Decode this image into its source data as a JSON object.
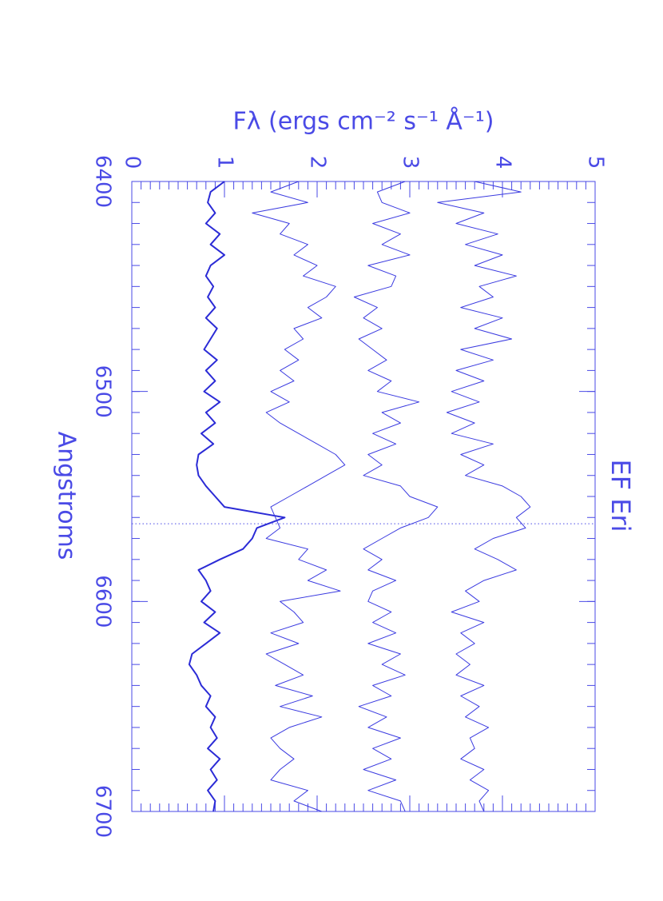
{
  "chart_data": {
    "type": "line",
    "title": "EF Eri",
    "xlabel": "Angstroms",
    "ylabel": "Fλ (ergs cm⁻² s⁻¹ Å⁻¹)",
    "x": [
      6400,
      6405,
      6410,
      6415,
      6420,
      6425,
      6430,
      6435,
      6440,
      6445,
      6450,
      6455,
      6460,
      6465,
      6470,
      6475,
      6480,
      6485,
      6490,
      6495,
      6500,
      6505,
      6510,
      6515,
      6520,
      6525,
      6530,
      6535,
      6540,
      6545,
      6550,
      6555,
      6560,
      6565,
      6570,
      6575,
      6580,
      6585,
      6590,
      6595,
      6600,
      6605,
      6610,
      6615,
      6620,
      6625,
      6630,
      6635,
      6640,
      6645,
      6650,
      6655,
      6660,
      6665,
      6670,
      6675,
      6680,
      6685,
      6690,
      6695,
      6700
    ],
    "series": [
      {
        "color": "#2b2bd6",
        "width": 2,
        "values": [
          1.0,
          0.85,
          0.82,
          0.9,
          0.8,
          0.95,
          0.85,
          1.0,
          0.85,
          0.8,
          0.88,
          0.82,
          0.9,
          0.8,
          0.92,
          0.85,
          0.78,
          0.92,
          0.8,
          0.9,
          0.78,
          0.95,
          0.8,
          0.9,
          0.75,
          0.88,
          0.72,
          0.7,
          0.72,
          0.8,
          0.9,
          1.0,
          1.65,
          1.35,
          1.3,
          1.2,
          0.95,
          0.72,
          0.8,
          0.85,
          0.75,
          0.9,
          0.78,
          0.95,
          0.8,
          0.65,
          0.62,
          0.7,
          0.75,
          0.85,
          0.8,
          0.9,
          0.85,
          0.92,
          0.82,
          0.95,
          0.85,
          0.92,
          0.82,
          0.9,
          0.88
        ]
      },
      {
        "color": "#3a3ae0",
        "width": 1,
        "values": [
          1.8,
          1.5,
          1.9,
          1.3,
          1.7,
          1.6,
          1.9,
          1.75,
          2.0,
          1.85,
          2.2,
          2.1,
          1.9,
          2.05,
          1.75,
          1.85,
          1.65,
          1.8,
          1.6,
          1.75,
          1.5,
          1.7,
          1.45,
          1.6,
          1.8,
          2.0,
          2.2,
          2.3,
          2.1,
          1.9,
          1.7,
          1.5,
          1.55,
          1.6,
          1.45,
          1.9,
          1.8,
          2.1,
          1.9,
          2.25,
          1.6,
          1.75,
          1.85,
          1.5,
          1.8,
          1.45,
          1.65,
          1.85,
          1.55,
          1.95,
          1.6,
          2.05,
          1.7,
          1.5,
          1.6,
          1.75,
          1.6,
          1.5,
          1.9,
          1.75,
          2.05
        ]
      },
      {
        "color": "#3a3ae0",
        "width": 1,
        "values": [
          2.95,
          2.65,
          2.7,
          3.0,
          2.6,
          2.9,
          2.7,
          3.0,
          2.55,
          2.85,
          2.8,
          2.4,
          2.65,
          2.5,
          2.7,
          2.45,
          2.6,
          2.75,
          2.55,
          2.8,
          2.65,
          3.1,
          2.7,
          2.9,
          2.6,
          2.85,
          2.55,
          2.7,
          2.5,
          2.9,
          3.0,
          3.3,
          3.2,
          2.9,
          2.7,
          2.5,
          2.7,
          2.55,
          2.85,
          2.6,
          2.55,
          2.8,
          2.6,
          2.85,
          2.55,
          2.9,
          2.7,
          2.95,
          2.6,
          2.8,
          2.45,
          2.75,
          2.55,
          2.9,
          2.6,
          2.8,
          2.5,
          2.85,
          2.55,
          2.9,
          2.95
        ]
      },
      {
        "color": "#3a3ae0",
        "width": 1,
        "values": [
          3.7,
          4.2,
          3.3,
          3.8,
          3.5,
          3.95,
          3.6,
          4.0,
          3.7,
          4.15,
          3.75,
          3.9,
          3.55,
          4.0,
          3.7,
          4.1,
          3.55,
          3.9,
          3.5,
          3.8,
          3.45,
          3.75,
          3.4,
          3.7,
          3.45,
          3.9,
          3.55,
          3.8,
          3.6,
          4.0,
          4.2,
          4.3,
          4.15,
          4.25,
          3.9,
          3.7,
          3.95,
          4.15,
          3.8,
          3.6,
          3.75,
          3.45,
          3.8,
          3.55,
          3.7,
          3.5,
          3.65,
          3.5,
          3.8,
          3.55,
          3.75,
          3.6,
          3.85,
          3.65,
          3.7,
          3.55,
          3.8,
          3.65,
          3.85,
          3.75,
          3.8
        ]
      }
    ],
    "reference_line": 6563,
    "xlim": [
      6400,
      6700
    ],
    "xticks": [
      6400,
      6500,
      6600,
      6700
    ],
    "ylim": [
      0,
      5
    ],
    "yticks": [
      0,
      1,
      2,
      3,
      4,
      5
    ]
  }
}
